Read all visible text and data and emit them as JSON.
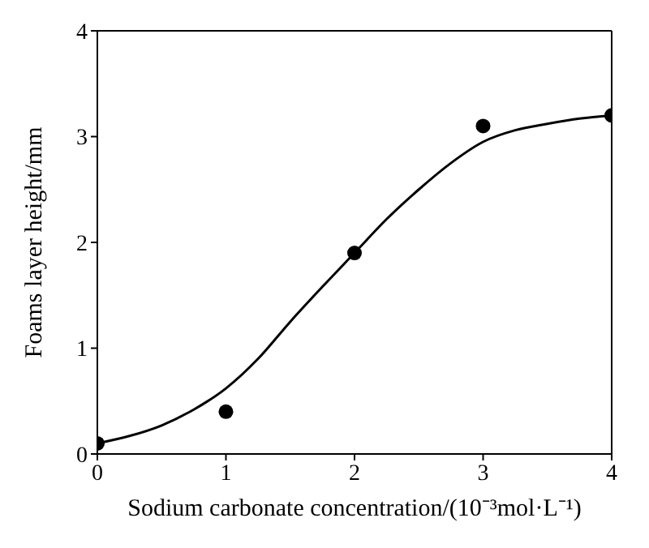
{
  "chart_data": {
    "type": "scatter",
    "xlabel": "Sodium carbonate concentration/(10⁻³mol·L⁻¹)",
    "ylabel": "Foams layer height/mm",
    "xlim": [
      0,
      4
    ],
    "xticks": [
      0,
      1,
      2,
      3,
      4
    ],
    "ylim": [
      0,
      4
    ],
    "yticks": [
      0,
      1,
      2,
      3,
      4
    ],
    "grid": false,
    "legend": false,
    "marker": "circle",
    "series": [
      {
        "color": "#000000",
        "x": [
          0,
          1,
          2,
          3,
          4
        ],
        "values": [
          0.1,
          0.4,
          1.9,
          3.1,
          3.2
        ]
      },
      {
        "type": "line",
        "color": "#000000",
        "marker": "none",
        "line_style": "solid",
        "x": [
          0,
          0.25,
          0.5,
          0.75,
          1,
          1.25,
          1.5,
          1.75,
          2,
          2.25,
          2.5,
          2.75,
          3,
          3.25,
          3.5,
          3.75,
          4
        ],
        "values": [
          0.1,
          0.17,
          0.27,
          0.42,
          0.62,
          0.9,
          1.25,
          1.58,
          1.9,
          2.22,
          2.5,
          2.75,
          2.95,
          3.06,
          3.12,
          3.17,
          3.2
        ]
      }
    ]
  }
}
